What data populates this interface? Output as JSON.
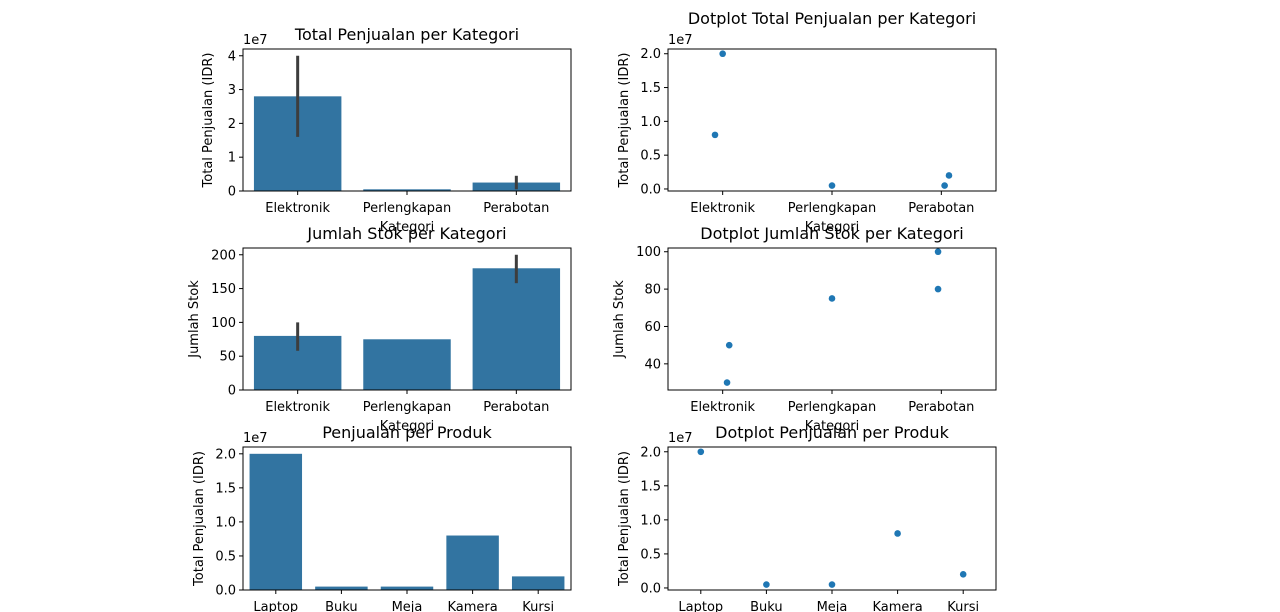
{
  "chart_data": [
    {
      "type": "bar",
      "title": "Total Penjualan per Kategori",
      "xlabel": "Kategori",
      "ylabel": "Total Penjualan (IDR)",
      "offset_label": "1e7",
      "categories": [
        "Elektronik",
        "Perlengkapan",
        "Perabotan"
      ],
      "values": [
        28000000,
        500000,
        2500000
      ],
      "error_bars": [
        [
          16000000,
          40000000
        ],
        [
          500000,
          500000
        ],
        [
          500000,
          4500000
        ]
      ],
      "ylim": [
        0,
        42000000
      ],
      "yticks": [
        0,
        10000000,
        20000000,
        30000000,
        40000000
      ],
      "ytick_labels": [
        "0",
        "1",
        "2",
        "3",
        "4"
      ],
      "color": "#3274a1",
      "errcolor": "#3d3d3d",
      "grid": false
    },
    {
      "type": "scatter",
      "title": "Dotplot Total Penjualan per Kategori",
      "xlabel": "Kategori",
      "ylabel": "Total Penjualan (IDR)",
      "offset_label": "1e7",
      "categories": [
        "Elektronik",
        "Perlengkapan",
        "Perabotan"
      ],
      "points": [
        {
          "category": "Elektronik",
          "value": 20000000,
          "jitter": 0.0
        },
        {
          "category": "Elektronik",
          "value": 8000000,
          "jitter": -0.07
        },
        {
          "category": "Perlengkapan",
          "value": 500000,
          "jitter": 0.0
        },
        {
          "category": "Perabotan",
          "value": 2000000,
          "jitter": 0.07
        },
        {
          "category": "Perabotan",
          "value": 500000,
          "jitter": 0.03
        }
      ],
      "ylim": [
        -300000,
        20700000
      ],
      "yticks": [
        0,
        5000000,
        10000000,
        15000000,
        20000000
      ],
      "ytick_labels": [
        "0.0",
        "0.5",
        "1.0",
        "1.5",
        "2.0"
      ],
      "color": "#1f77b4",
      "grid": false
    },
    {
      "type": "bar",
      "title": "Jumlah Stok per Kategori",
      "xlabel": "Kategori",
      "ylabel": "Jumlah Stok",
      "offset_label": "",
      "categories": [
        "Elektronik",
        "Perlengkapan",
        "Perabotan"
      ],
      "values": [
        80,
        75,
        180
      ],
      "error_bars": [
        [
          58,
          100
        ],
        [
          75,
          75
        ],
        [
          158,
          200
        ]
      ],
      "ylim": [
        0,
        210
      ],
      "yticks": [
        0,
        50,
        100,
        150,
        200
      ],
      "ytick_labels": [
        "0",
        "50",
        "100",
        "150",
        "200"
      ],
      "color": "#3274a1",
      "errcolor": "#3d3d3d",
      "grid": false
    },
    {
      "type": "scatter",
      "title": "Dotplot Jumlah Stok per Kategori",
      "xlabel": "Kategori",
      "ylabel": "Jumlah Stok",
      "offset_label": "",
      "categories": [
        "Elektronik",
        "Perlengkapan",
        "Perabotan"
      ],
      "points": [
        {
          "category": "Elektronik",
          "value": 50,
          "jitter": 0.06
        },
        {
          "category": "Elektronik",
          "value": 30,
          "jitter": 0.04
        },
        {
          "category": "Perlengkapan",
          "value": 75,
          "jitter": 0.0
        },
        {
          "category": "Perabotan",
          "value": 100,
          "jitter": -0.03
        },
        {
          "category": "Perabotan",
          "value": 80,
          "jitter": -0.03
        }
      ],
      "ylim": [
        26,
        102
      ],
      "yticks": [
        40,
        60,
        80,
        100
      ],
      "ytick_labels": [
        "40",
        "60",
        "80",
        "100"
      ],
      "color": "#1f77b4",
      "grid": false
    },
    {
      "type": "bar",
      "title": "Penjualan per Produk",
      "xlabel": "",
      "ylabel": "Total Penjualan (IDR)",
      "offset_label": "1e7",
      "categories": [
        "Laptop",
        "Buku",
        "Meja",
        "Kamera",
        "Kursi"
      ],
      "values": [
        20000000,
        500000,
        500000,
        8000000,
        2000000
      ],
      "ylim": [
        0,
        21000000
      ],
      "yticks": [
        0,
        5000000,
        10000000,
        15000000,
        20000000
      ],
      "ytick_labels": [
        "0.0",
        "0.5",
        "1.0",
        "1.5",
        "2.0"
      ],
      "color": "#3274a1",
      "grid": false
    },
    {
      "type": "scatter",
      "title": "Dotplot Penjualan per Produk",
      "xlabel": "",
      "ylabel": "Total Penjualan (IDR)",
      "offset_label": "1e7",
      "categories": [
        "Laptop",
        "Buku",
        "Meja",
        "Kamera",
        "Kursi"
      ],
      "points": [
        {
          "category": "Laptop",
          "value": 20000000,
          "jitter": 0.0
        },
        {
          "category": "Buku",
          "value": 500000,
          "jitter": 0.0
        },
        {
          "category": "Meja",
          "value": 500000,
          "jitter": 0.0
        },
        {
          "category": "Kamera",
          "value": 8000000,
          "jitter": 0.0
        },
        {
          "category": "Kursi",
          "value": 2000000,
          "jitter": 0.0
        }
      ],
      "ylim": [
        -300000,
        20700000
      ],
      "yticks": [
        0,
        5000000,
        10000000,
        15000000,
        20000000
      ],
      "ytick_labels": [
        "0.0",
        "0.5",
        "1.0",
        "1.5",
        "2.0"
      ],
      "color": "#1f77b4",
      "grid": false
    }
  ]
}
